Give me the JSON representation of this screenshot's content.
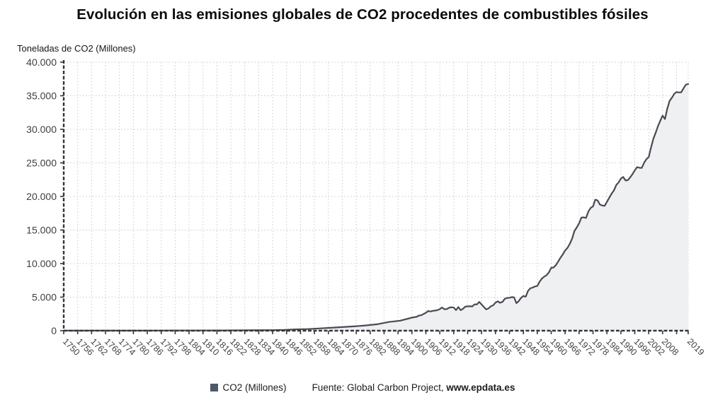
{
  "chart_data": {
    "type": "area",
    "title": "Evolución en las emisiones globales de CO2 procedentes de combustibles fósiles",
    "ylabel": "Toneladas de CO2 (Millones)",
    "xlabel": "",
    "ylim": [
      0,
      40000
    ],
    "xlim": [
      1750,
      2019
    ],
    "grid": true,
    "legend_position": "bottom",
    "ytick_values": [
      0,
      5000,
      10000,
      15000,
      20000,
      25000,
      30000,
      35000,
      40000
    ],
    "ytick_labels": [
      "0",
      "5.000",
      "10.000",
      "15.000",
      "20.000",
      "25.000",
      "30.000",
      "35.000",
      "40.000"
    ],
    "xtick_years": [
      1750,
      1756,
      1762,
      1768,
      1774,
      1780,
      1786,
      1792,
      1798,
      1804,
      1810,
      1816,
      1822,
      1828,
      1834,
      1840,
      1846,
      1852,
      1858,
      1864,
      1870,
      1876,
      1882,
      1888,
      1894,
      1900,
      1906,
      1912,
      1918,
      1924,
      1930,
      1936,
      1942,
      1948,
      1954,
      1960,
      1966,
      1972,
      1978,
      1984,
      1990,
      1996,
      2002,
      2008,
      2019
    ],
    "xticks_minor": [
      2014
    ],
    "legend": [
      {
        "name": "CO2 (Millones)",
        "color": "#4d5966"
      }
    ],
    "source": {
      "prefix": "Fuente: Global Carbon Project, ",
      "link": "www.epdata.es"
    },
    "colors": {
      "line": "#4a4a51",
      "fill": "#eef0f2",
      "grid": "#c9c9c9",
      "axis": "#35353b",
      "tick_text": "#3f3f3f"
    },
    "series": [
      {
        "name": "CO2 (Millones)",
        "points": [
          [
            1750,
            9
          ],
          [
            1760,
            10
          ],
          [
            1770,
            12
          ],
          [
            1780,
            14
          ],
          [
            1790,
            19
          ],
          [
            1800,
            30
          ],
          [
            1810,
            36
          ],
          [
            1820,
            44
          ],
          [
            1830,
            63
          ],
          [
            1840,
            88
          ],
          [
            1845,
            120
          ],
          [
            1850,
            197
          ],
          [
            1855,
            245
          ],
          [
            1860,
            341
          ],
          [
            1865,
            430
          ],
          [
            1870,
            534
          ],
          [
            1875,
            640
          ],
          [
            1880,
            782
          ],
          [
            1885,
            960
          ],
          [
            1890,
            1290
          ],
          [
            1895,
            1490
          ],
          [
            1900,
            1950
          ],
          [
            1901,
            2010
          ],
          [
            1902,
            2060
          ],
          [
            1903,
            2250
          ],
          [
            1904,
            2290
          ],
          [
            1905,
            2500
          ],
          [
            1906,
            2660
          ],
          [
            1907,
            2940
          ],
          [
            1908,
            2860
          ],
          [
            1909,
            2960
          ],
          [
            1910,
            3000
          ],
          [
            1911,
            3060
          ],
          [
            1912,
            3210
          ],
          [
            1913,
            3460
          ],
          [
            1914,
            3200
          ],
          [
            1915,
            3220
          ],
          [
            1916,
            3420
          ],
          [
            1917,
            3490
          ],
          [
            1918,
            3450
          ],
          [
            1919,
            3060
          ],
          [
            1920,
            3530
          ],
          [
            1921,
            3050
          ],
          [
            1922,
            3270
          ],
          [
            1923,
            3590
          ],
          [
            1924,
            3620
          ],
          [
            1925,
            3640
          ],
          [
            1926,
            3620
          ],
          [
            1927,
            3930
          ],
          [
            1928,
            3920
          ],
          [
            1929,
            4280
          ],
          [
            1930,
            3910
          ],
          [
            1931,
            3530
          ],
          [
            1932,
            3170
          ],
          [
            1933,
            3330
          ],
          [
            1934,
            3640
          ],
          [
            1935,
            3780
          ],
          [
            1936,
            4190
          ],
          [
            1937,
            4370
          ],
          [
            1938,
            4160
          ],
          [
            1939,
            4290
          ],
          [
            1940,
            4760
          ],
          [
            1941,
            4870
          ],
          [
            1942,
            4890
          ],
          [
            1943,
            5010
          ],
          [
            1944,
            4960
          ],
          [
            1945,
            4090
          ],
          [
            1946,
            4400
          ],
          [
            1947,
            4880
          ],
          [
            1948,
            5170
          ],
          [
            1949,
            5060
          ],
          [
            1950,
            5930
          ],
          [
            1951,
            6320
          ],
          [
            1952,
            6420
          ],
          [
            1953,
            6590
          ],
          [
            1954,
            6660
          ],
          [
            1955,
            7300
          ],
          [
            1956,
            7770
          ],
          [
            1957,
            8050
          ],
          [
            1958,
            8270
          ],
          [
            1959,
            8700
          ],
          [
            1960,
            9380
          ],
          [
            1961,
            9410
          ],
          [
            1962,
            9760
          ],
          [
            1963,
            10310
          ],
          [
            1964,
            10880
          ],
          [
            1965,
            11370
          ],
          [
            1966,
            11950
          ],
          [
            1967,
            12330
          ],
          [
            1968,
            12950
          ],
          [
            1969,
            13720
          ],
          [
            1970,
            14830
          ],
          [
            1971,
            15380
          ],
          [
            1972,
            15990
          ],
          [
            1973,
            16850
          ],
          [
            1974,
            16880
          ],
          [
            1975,
            16790
          ],
          [
            1976,
            17750
          ],
          [
            1977,
            18290
          ],
          [
            1978,
            18520
          ],
          [
            1979,
            19530
          ],
          [
            1980,
            19400
          ],
          [
            1981,
            18780
          ],
          [
            1982,
            18650
          ],
          [
            1983,
            18600
          ],
          [
            1984,
            19190
          ],
          [
            1985,
            19800
          ],
          [
            1986,
            20410
          ],
          [
            1987,
            20890
          ],
          [
            1988,
            21690
          ],
          [
            1989,
            22070
          ],
          [
            1990,
            22640
          ],
          [
            1991,
            22900
          ],
          [
            1992,
            22380
          ],
          [
            1993,
            22430
          ],
          [
            1994,
            22830
          ],
          [
            1995,
            23320
          ],
          [
            1996,
            23880
          ],
          [
            1997,
            24370
          ],
          [
            1998,
            24270
          ],
          [
            1999,
            24240
          ],
          [
            2000,
            25010
          ],
          [
            2001,
            25550
          ],
          [
            2002,
            25870
          ],
          [
            2003,
            27280
          ],
          [
            2004,
            28580
          ],
          [
            2005,
            29490
          ],
          [
            2006,
            30490
          ],
          [
            2007,
            31290
          ],
          [
            2008,
            32040
          ],
          [
            2009,
            31530
          ],
          [
            2010,
            33080
          ],
          [
            2011,
            34240
          ],
          [
            2012,
            34700
          ],
          [
            2013,
            35270
          ],
          [
            2014,
            35560
          ],
          [
            2015,
            35500
          ],
          [
            2016,
            35520
          ],
          [
            2017,
            36100
          ],
          [
            2018,
            36650
          ],
          [
            2019,
            36750
          ]
        ]
      }
    ]
  }
}
